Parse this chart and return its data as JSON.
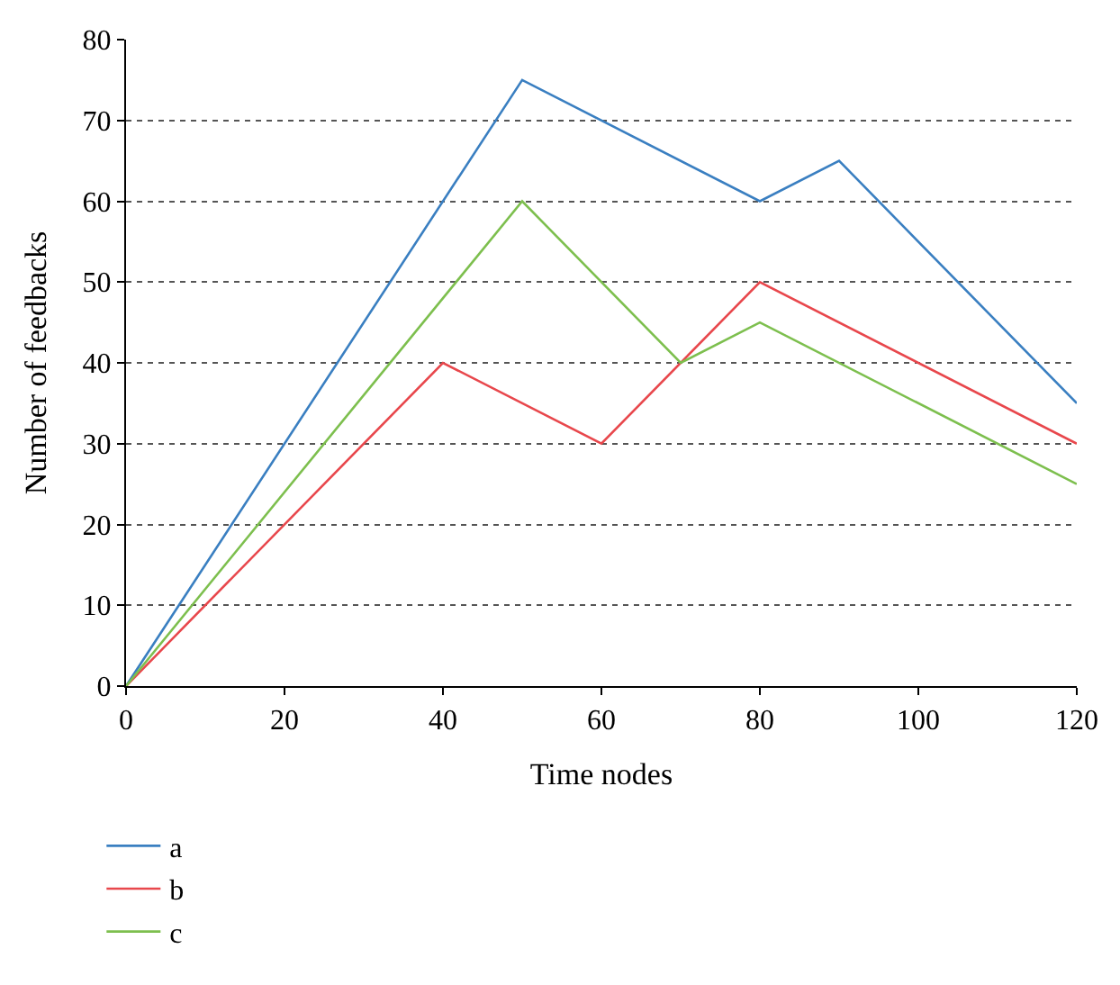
{
  "chart_data": {
    "type": "line",
    "xlabel": "Time nodes",
    "ylabel": "Number of feedbacks",
    "xlim": [
      0,
      120
    ],
    "xticks": [
      0,
      20,
      40,
      60,
      80,
      100,
      120
    ],
    "ylim": [
      0,
      80
    ],
    "yticks": [
      0,
      10,
      20,
      30,
      40,
      50,
      60,
      70,
      80
    ],
    "grid": "y",
    "legend": "bottom left",
    "marker": "none",
    "line_style": "solid",
    "series": [
      {
        "name": "a",
        "color": "#3a7fc1",
        "x": [
          0,
          50,
          80,
          90,
          120
        ],
        "values": [
          0,
          75,
          60,
          65,
          35
        ]
      },
      {
        "name": "b",
        "color": "#e8474c",
        "x": [
          0,
          40,
          60,
          80,
          120
        ],
        "values": [
          0,
          40,
          30,
          50,
          30
        ]
      },
      {
        "name": "c",
        "color": "#7dbf4e",
        "x": [
          0,
          50,
          70,
          80,
          120
        ],
        "values": [
          0,
          60,
          40,
          45,
          25
        ]
      }
    ]
  }
}
